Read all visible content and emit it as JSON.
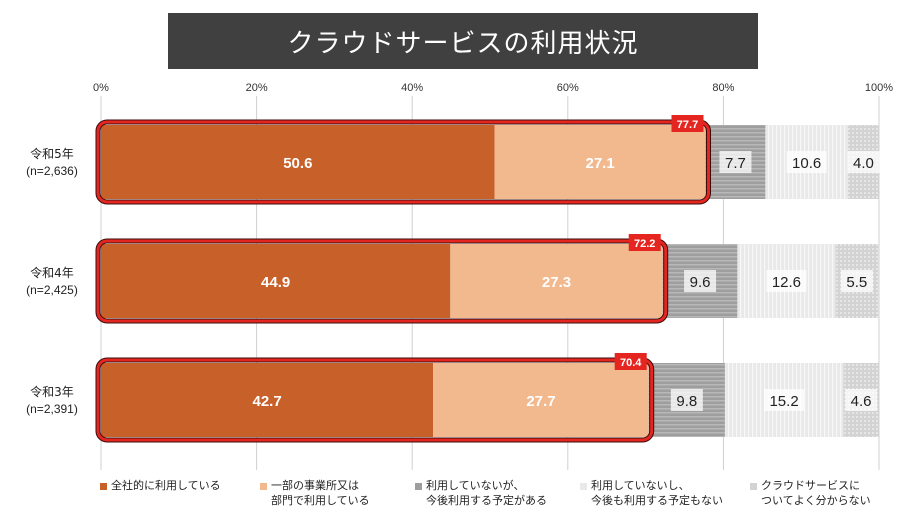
{
  "title": "クラウドサービスの利用状況",
  "chart_data": {
    "type": "bar",
    "orientation": "horizontal",
    "stacked": true,
    "title": "クラウドサービスの利用状況",
    "xlim": [
      0,
      100
    ],
    "x_ticks": [
      "0%",
      "20%",
      "40%",
      "60%",
      "80%",
      "100%"
    ],
    "categories": [
      {
        "year": "令和5年",
        "n": "(n=2,636)"
      },
      {
        "year": "令和4年",
        "n": "(n=2,425)"
      },
      {
        "year": "令和3年",
        "n": "(n=2,391)"
      }
    ],
    "series": [
      {
        "name": "全社的に利用している",
        "values": [
          50.6,
          44.9,
          42.7
        ],
        "labels": [
          "50.6",
          "44.9",
          "42.7"
        ],
        "color": "#c8602a"
      },
      {
        "name": "一部の事業所又は部門で利用している",
        "values": [
          27.1,
          27.3,
          27.7
        ],
        "labels": [
          "27.1",
          "27.3",
          "27.7"
        ],
        "color": "#f2b98f"
      },
      {
        "name": "利用していないが、今後利用する予定がある",
        "values": [
          7.7,
          9.6,
          9.8
        ],
        "labels": [
          "7.7",
          "9.6",
          "9.8"
        ],
        "color": "#9e9e9e"
      },
      {
        "name": "利用していないし、今後も利用する予定もない",
        "values": [
          10.6,
          12.6,
          15.2
        ],
        "labels": [
          "10.6",
          "12.6",
          "15.2"
        ],
        "color": "#e9e9e9"
      },
      {
        "name": "クラウドサービスについてよく分からない",
        "values": [
          4.0,
          5.5,
          4.6
        ],
        "labels": [
          "4.0",
          "5.5",
          "4.6"
        ],
        "color": "#d3d3d3"
      }
    ],
    "totals": {
      "values": [
        77.7,
        72.2,
        70.4
      ],
      "labels": [
        "77.7",
        "72.2",
        "70.4"
      ],
      "color": "#e52620"
    },
    "grid": true,
    "legend_position": "bottom"
  },
  "legend": {
    "items": [
      {
        "line1": "全社的に利用している",
        "line2": ""
      },
      {
        "line1": "一部の事業所又は",
        "line2": "部門で利用している"
      },
      {
        "line1": "利用していないが、",
        "line2": "今後利用する予定がある"
      },
      {
        "line1": "利用していないし、",
        "line2": "今後も利用する予定もない"
      },
      {
        "line1": "クラウドサービスに",
        "line2": "ついてよく分からない"
      }
    ]
  }
}
